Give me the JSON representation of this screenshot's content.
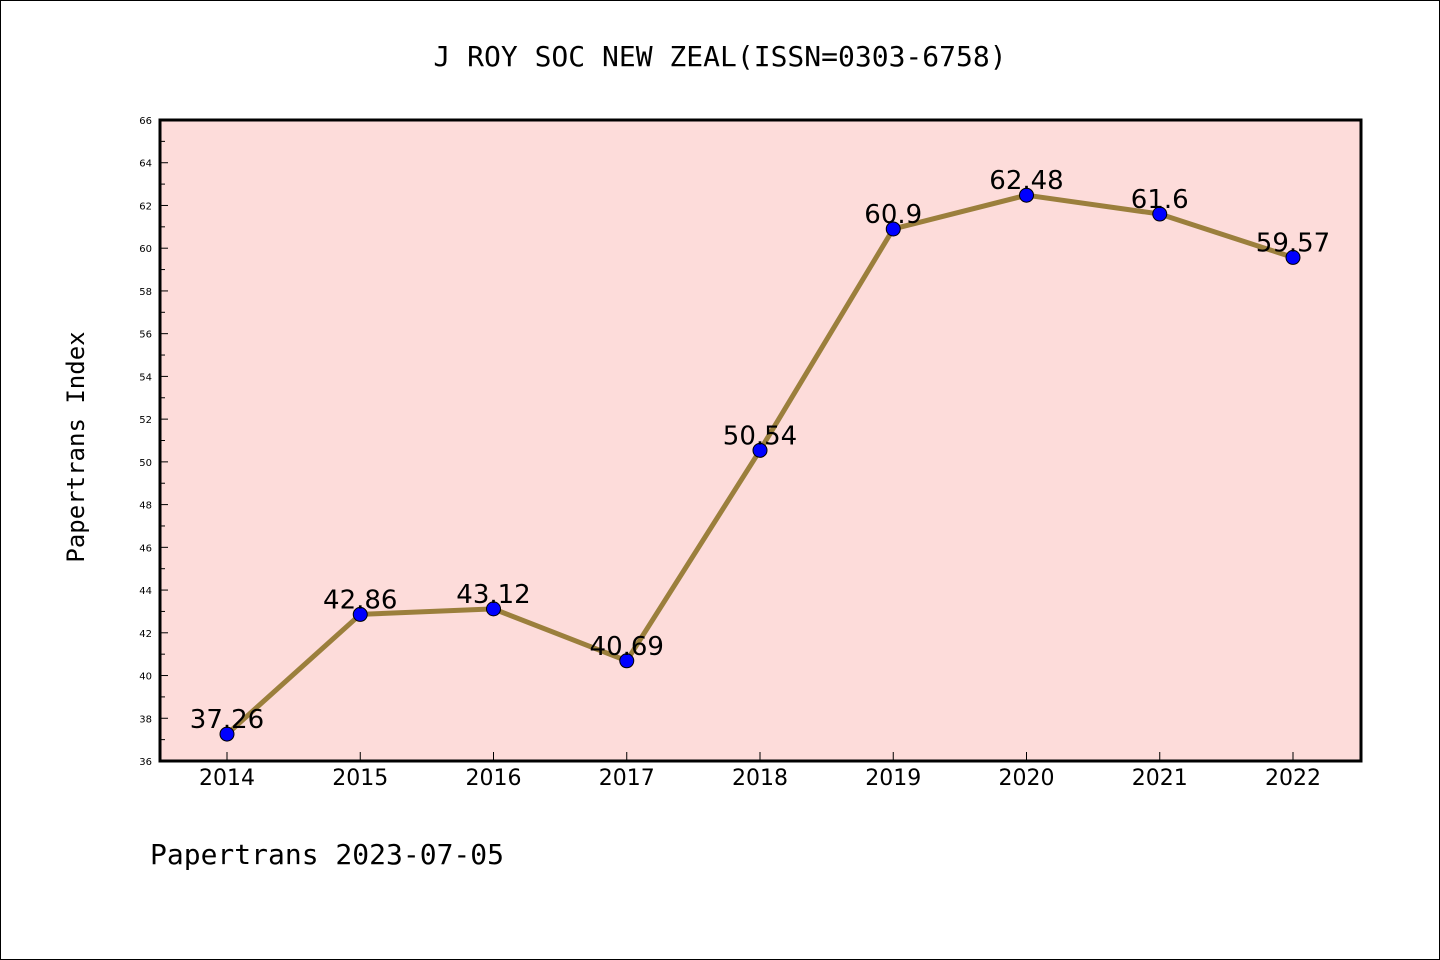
{
  "chart_data": {
    "type": "line",
    "title": "J ROY SOC NEW ZEAL(ISSN=0303-6758)",
    "xlabel": "",
    "ylabel": "Papertrans Index",
    "categories": [
      "2014",
      "2015",
      "2016",
      "2017",
      "2018",
      "2019",
      "2020",
      "2021",
      "2022"
    ],
    "values": [
      37.26,
      42.86,
      43.12,
      40.69,
      50.54,
      60.9,
      62.48,
      61.6,
      59.57
    ],
    "data_labels": [
      "37.26",
      "42.86",
      "43.12",
      "40.69",
      "50.54",
      "60.9",
      "62.48",
      "61.6",
      "59.57"
    ],
    "ylim": [
      36,
      66
    ],
    "yticks": [
      "36",
      "38",
      "40",
      "42",
      "44",
      "46",
      "48",
      "50",
      "52",
      "54",
      "56",
      "58",
      "60",
      "62",
      "64",
      "66"
    ],
    "grid": false,
    "legend": "none",
    "colors": {
      "line": "#9b7f3c",
      "marker": "#0000ff",
      "plot_background": "#fddcda"
    }
  },
  "footer": "Papertrans 2023-07-05"
}
